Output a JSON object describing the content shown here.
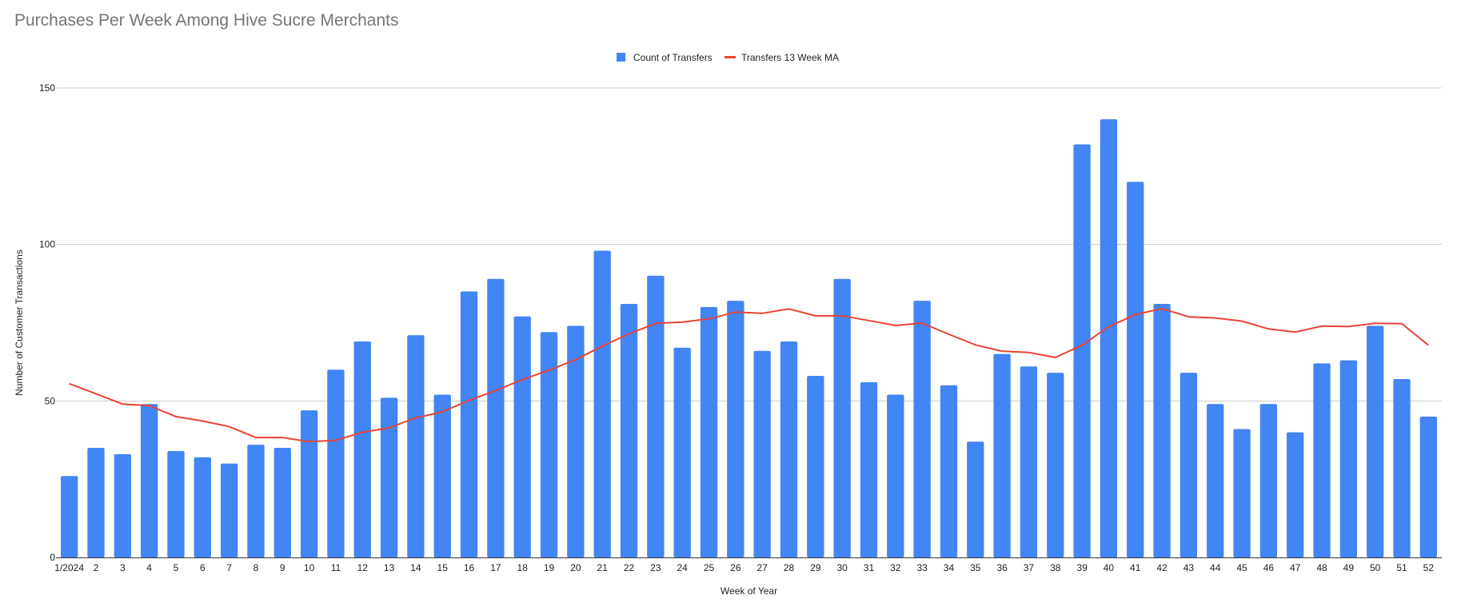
{
  "chart_data": {
    "type": "bar",
    "title": "Purchases Per Week Among Hive Sucre Merchants",
    "xlabel": "Week of Year",
    "ylabel": "Number of Customer Transactions",
    "ylim": [
      0,
      150
    ],
    "yticks": [
      0,
      50,
      100,
      150
    ],
    "grid": true,
    "legend_position": "top-center",
    "categories": [
      "1/2024",
      "2",
      "3",
      "4",
      "5",
      "6",
      "7",
      "8",
      "9",
      "10",
      "11",
      "12",
      "13",
      "14",
      "15",
      "16",
      "17",
      "18",
      "19",
      "20",
      "21",
      "22",
      "23",
      "24",
      "25",
      "26",
      "27",
      "28",
      "29",
      "30",
      "31",
      "32",
      "33",
      "34",
      "35",
      "36",
      "37",
      "38",
      "39",
      "40",
      "41",
      "42",
      "43",
      "44",
      "45",
      "46",
      "47",
      "48",
      "49",
      "50",
      "51",
      "52"
    ],
    "series": [
      {
        "name": "Count of Transfers",
        "type": "bar",
        "color": "#4285f4",
        "values": [
          26,
          35,
          33,
          49,
          34,
          32,
          30,
          36,
          35,
          47,
          60,
          69,
          51,
          71,
          52,
          85,
          89,
          77,
          72,
          74,
          98,
          81,
          90,
          67,
          80,
          82,
          66,
          69,
          58,
          89,
          56,
          52,
          82,
          55,
          37,
          65,
          61,
          59,
          132,
          140,
          120,
          81,
          59,
          49,
          41,
          49,
          40,
          62,
          63,
          74,
          57,
          45
        ]
      },
      {
        "name": "Transfers 13 Week MA",
        "type": "line",
        "color": "#ea4335",
        "values": [
          55.5,
          52.3,
          49,
          48.5,
          45,
          43.6,
          41.8,
          38.3,
          38.3,
          37,
          37.4,
          40,
          41.4,
          44.6,
          46.5,
          50.2,
          53.3,
          56.8,
          59.8,
          63.2,
          67.5,
          71.4,
          74.8,
          75.2,
          76.2,
          78.4,
          78,
          79.4,
          77.2,
          77.2,
          75.7,
          74.1,
          74.9,
          71.3,
          67.9,
          65.9,
          65.5,
          63.9,
          67.8,
          73.7,
          77.6,
          79.5,
          76.9,
          76.5,
          75.5,
          73,
          72,
          73.9,
          73.8,
          74.8,
          74.7,
          67.8
        ]
      }
    ]
  }
}
